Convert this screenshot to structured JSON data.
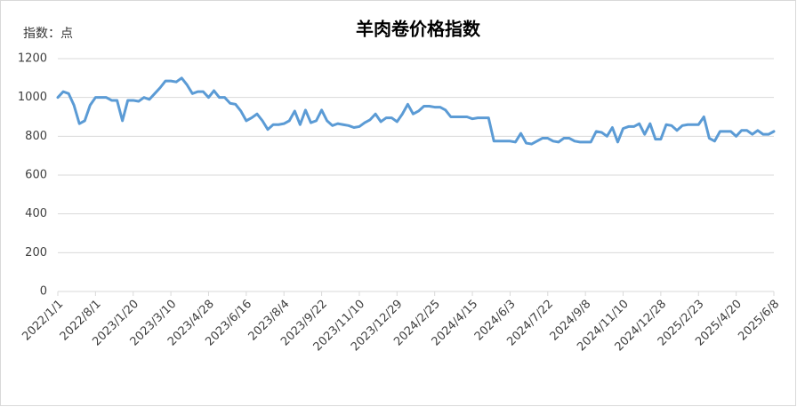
{
  "chart_data": {
    "type": "line",
    "title": "羊肉卷价格指数",
    "y_label": "指数：点",
    "categories": [
      "2022/1/1",
      null,
      null,
      null,
      null,
      null,
      null,
      "2022/8/1",
      null,
      null,
      null,
      null,
      null,
      null,
      "2023/1/20",
      null,
      null,
      null,
      null,
      null,
      null,
      "2023/3/10",
      null,
      null,
      null,
      null,
      null,
      null,
      "2023/4/28",
      null,
      null,
      null,
      null,
      null,
      null,
      "2023/6/16",
      null,
      null,
      null,
      null,
      null,
      null,
      "2023/8/4",
      null,
      null,
      null,
      null,
      null,
      null,
      "2023/9/22",
      null,
      null,
      null,
      null,
      null,
      null,
      "2023/11/10",
      null,
      null,
      null,
      null,
      null,
      null,
      "2023/12/29",
      null,
      null,
      null,
      null,
      null,
      null,
      "2024/2/25",
      null,
      null,
      null,
      null,
      null,
      null,
      "2024/4/15",
      null,
      null,
      null,
      null,
      null,
      null,
      "2024/6/3",
      null,
      null,
      null,
      null,
      null,
      null,
      "2024/7/22",
      null,
      null,
      null,
      null,
      null,
      null,
      "2024/9/8",
      null,
      null,
      null,
      null,
      null,
      null,
      "2024/11/10",
      null,
      null,
      null,
      null,
      null,
      null,
      "2024/12/28",
      null,
      null,
      null,
      null,
      null,
      null,
      "2025/2/23",
      null,
      null,
      null,
      null,
      null,
      null,
      "2025/4/20",
      null,
      null,
      null,
      null,
      null,
      null,
      "2025/6/8"
    ],
    "series": [
      {
        "color": "#5b9bd5",
        "values": [
          1000,
          1030,
          1020,
          960,
          865,
          880,
          960,
          1000,
          1000,
          1000,
          985,
          985,
          880,
          985,
          985,
          980,
          1000,
          990,
          1020,
          1050,
          1085,
          1085,
          1080,
          1100,
          1065,
          1020,
          1030,
          1030,
          1000,
          1035,
          1000,
          1000,
          970,
          965,
          930,
          880,
          895,
          915,
          880,
          835,
          860,
          860,
          865,
          880,
          930,
          860,
          935,
          870,
          880,
          935,
          880,
          855,
          865,
          860,
          855,
          845,
          850,
          870,
          885,
          915,
          875,
          895,
          895,
          875,
          915,
          965,
          915,
          930,
          955,
          955,
          950,
          950,
          935,
          900,
          900,
          900,
          900,
          890,
          895,
          895,
          895,
          775,
          775,
          775,
          775,
          770,
          815,
          765,
          760,
          775,
          790,
          790,
          775,
          770,
          790,
          790,
          775,
          770,
          770,
          770,
          825,
          820,
          800,
          845,
          770,
          840,
          850,
          850,
          865,
          810,
          865,
          785,
          785,
          860,
          855,
          830,
          855,
          860,
          860,
          860,
          900,
          790,
          775,
          825,
          825,
          825,
          800,
          830,
          830,
          810,
          830,
          810,
          810,
          825
        ]
      }
    ],
    "ylim": [
      0,
      1200
    ],
    "yticks": [
      0,
      200,
      400,
      600,
      800,
      1000,
      1200
    ],
    "grid": true
  }
}
